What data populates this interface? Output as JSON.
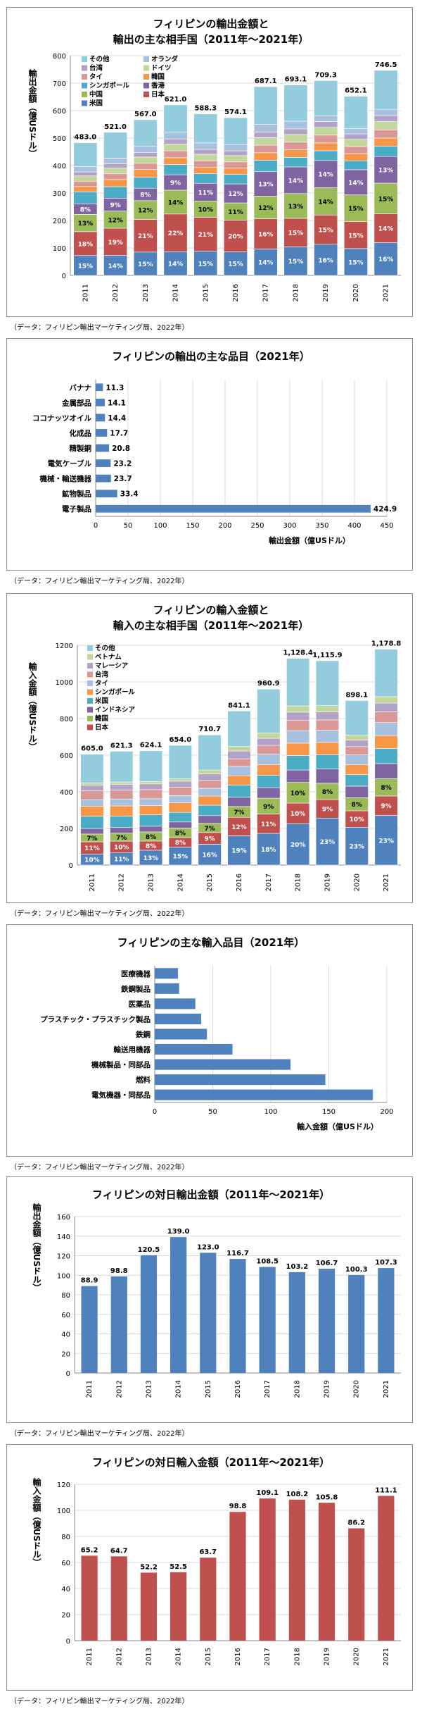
{
  "colors": {
    "japan": "#c0504d",
    "us": "#4f81bd",
    "china": "#9bbb59",
    "korea": "#9bbb59",
    "hongkong": "#8064a2",
    "indonesia": "#8064a2",
    "singapore": "#4bacc6",
    "thailand": "#f79646",
    "taiwan": "#d99795",
    "malaysia": "#d99795",
    "germany": "#c3d69b",
    "vietnam": "#b3a2c7",
    "netherlands": "#a7c0de",
    "other": "#93cddd",
    "bar_blue": "#4f81bd",
    "bar_red": "#c0504d"
  },
  "chart_data": [
    {
      "id": "export-partners",
      "type": "stacked-bar",
      "title_line1": "フィリピンの輸出金額と",
      "title_line2": "輸出の主な相手国（2011年～2021年）",
      "ylabel": "輸出金額（億USドル）",
      "ylim": [
        0,
        800
      ],
      "yticks": [
        0,
        100,
        200,
        300,
        400,
        500,
        600,
        700,
        800
      ],
      "grid": true,
      "legend_position": "top-left",
      "categories": [
        "2011",
        "2012",
        "2013",
        "2014",
        "2015",
        "2016",
        "2017",
        "2018",
        "2019",
        "2020",
        "2021"
      ],
      "totals": [
        483.0,
        521.0,
        567.0,
        621.0,
        588.3,
        574.1,
        687.1,
        693.1,
        709.3,
        652.1,
        746.5
      ],
      "total_labels": [
        "483.0",
        "521.0",
        "567.0",
        "621.0",
        "588.3",
        "574.1",
        "687.1",
        "693.1",
        "709.3",
        "652.1",
        "746.5"
      ],
      "legend_order": [
        "その他",
        "オランダ",
        "台湾",
        "ドイツ",
        "タイ",
        "韓国",
        "シンガポール",
        "香港",
        "中国",
        "日本",
        "米国"
      ],
      "series": [
        {
          "name": "米国",
          "color_key": "us",
          "share": [
            15,
            14,
            15,
            14,
            15,
            15,
            14,
            15,
            16,
            15,
            16
          ],
          "labels": [
            "15%",
            "14%",
            "15%",
            "14%",
            "15%",
            "15%",
            "14%",
            "15%",
            "16%",
            "15%",
            "16%"
          ]
        },
        {
          "name": "日本",
          "color_key": "japan",
          "share": [
            18,
            19,
            21,
            22,
            21,
            20,
            16,
            15,
            15,
            15,
            14
          ],
          "labels": [
            "18%",
            "19%",
            "21%",
            "22%",
            "21%",
            "20%",
            "16%",
            "15%",
            "15%",
            "15%",
            "14%"
          ]
        },
        {
          "name": "中国",
          "color_key": "china",
          "share": [
            13,
            12,
            12,
            14,
            10,
            11,
            12,
            13,
            14,
            15,
            15
          ],
          "labels": [
            "13%",
            "12%",
            "12%",
            "14%",
            "10%",
            "11%",
            "12%",
            "13%",
            "14%",
            "15%",
            "15%"
          ]
        },
        {
          "name": "香港",
          "color_key": "hongkong",
          "share": [
            8,
            9,
            8,
            9,
            11,
            12,
            13,
            14,
            14,
            14,
            13
          ],
          "labels": [
            "8%",
            "9%",
            "8%",
            "9%",
            "11%",
            "12%",
            "13%",
            "14%",
            "14%",
            "14%",
            "13%"
          ]
        },
        {
          "name": "シンガポール",
          "color_key": "singapore",
          "share": [
            9,
            8,
            7,
            6,
            6,
            6,
            6,
            5,
            5,
            5,
            5
          ],
          "labels": [
            "",
            "",
            "",
            "",
            "",
            "",
            "",
            "",
            "",
            "",
            ""
          ]
        },
        {
          "name": "韓国",
          "color_key": "thailand",
          "share": [
            4,
            5,
            5,
            4,
            4,
            4,
            4,
            4,
            4,
            4,
            4
          ],
          "labels": [
            "",
            "",
            "",
            "",
            "",
            "",
            "",
            "",
            "",
            "",
            ""
          ]
        },
        {
          "name": "タイ",
          "color_key": "taiwan",
          "share": [
            4,
            4,
            4,
            4,
            4,
            4,
            4,
            4,
            4,
            4,
            4
          ],
          "labels": [
            "",
            "",
            "",
            "",
            "",
            "",
            "",
            "",
            "",
            "",
            ""
          ]
        },
        {
          "name": "ドイツ",
          "color_key": "germany",
          "share": [
            4,
            4,
            4,
            4,
            4,
            4,
            4,
            4,
            4,
            4,
            4
          ],
          "labels": [
            "",
            "",
            "",
            "",
            "",
            "",
            "",
            "",
            "",
            "",
            ""
          ]
        },
        {
          "name": "台湾",
          "color_key": "vietnam",
          "share": [
            3,
            3,
            3,
            3,
            3,
            3,
            3,
            3,
            3,
            3,
            3
          ],
          "labels": [
            "",
            "",
            "",
            "",
            "",
            "",
            "",
            "",
            "",
            "",
            ""
          ]
        },
        {
          "name": "オランダ",
          "color_key": "netherlands",
          "share": [
            4,
            4,
            4,
            4,
            4,
            4,
            4,
            4,
            3,
            3,
            3
          ],
          "labels": [
            "",
            "",
            "",
            "",
            "",
            "",
            "",
            "",
            "",
            "",
            ""
          ]
        },
        {
          "name": "その他",
          "color_key": "other",
          "share": [
            18,
            18,
            17,
            16,
            18,
            17,
            20,
            19,
            18,
            18,
            19
          ],
          "labels": [
            "",
            "",
            "",
            "",
            "",
            "",
            "",
            "",
            "",
            "",
            ""
          ]
        }
      ],
      "source": "（データ：フィリピン輸出マーケティング局、2022年）"
    },
    {
      "id": "export-items",
      "type": "hbar",
      "title": "フィリピンの輸出の主な品目（2021年）",
      "xlabel": "輸出金額（億USドル）",
      "xlim": [
        0,
        450
      ],
      "xticks": [
        0,
        50,
        100,
        150,
        200,
        250,
        300,
        350,
        400,
        450
      ],
      "grid": true,
      "categories": [
        "バナナ",
        "金属部品",
        "ココナッツオイル",
        "化成品",
        "精製銅",
        "電気ケーブル",
        "機械・輸送機器",
        "鉱物製品",
        "電子製品"
      ],
      "values": [
        11.3,
        14.1,
        14.4,
        17.7,
        20.8,
        23.2,
        23.7,
        33.4,
        424.9
      ],
      "value_labels": [
        "11.3",
        "14.1",
        "14.4",
        "17.7",
        "20.8",
        "23.2",
        "23.7",
        "33.4",
        "424.9"
      ],
      "source": "（データ：フィリピン輸出マーケティング局、2022年）"
    },
    {
      "id": "import-partners",
      "type": "stacked-bar",
      "title_line1": "フィリピンの輸入金額と",
      "title_line2": "輸入の主な相手国（2011年～2021年）",
      "ylabel": "輸入金額（億USドル）",
      "ylim": [
        0,
        1200
      ],
      "yticks": [
        0,
        200,
        400,
        600,
        800,
        1000,
        1200
      ],
      "grid": true,
      "legend_position": "top-left",
      "categories": [
        "2011",
        "2012",
        "2013",
        "2014",
        "2015",
        "2016",
        "2017",
        "2018",
        "2019",
        "2020",
        "2021"
      ],
      "totals": [
        605.0,
        621.3,
        624.1,
        654.0,
        710.7,
        841.1,
        960.9,
        1128.4,
        1115.9,
        898.1,
        1178.8
      ],
      "total_labels": [
        "605.0",
        "621.3",
        "624.1",
        "654.0",
        "710.7",
        "841.1",
        "960.9",
        "1,128.4",
        "1,115.9",
        "898.1",
        "1,178.8"
      ],
      "legend_order": [
        "その他",
        "ベトナム",
        "マレーシア",
        "台湾",
        "タイ",
        "シンガポール",
        "米国",
        "インドネシア",
        "韓国",
        "日本"
      ],
      "series": [
        {
          "name": "中国",
          "color_key": "us",
          "share": [
            10,
            11,
            13,
            15,
            16,
            19,
            18,
            20,
            23,
            23,
            23
          ],
          "labels": [
            "10%",
            "11%",
            "13%",
            "15%",
            "16%",
            "19%",
            "18%",
            "20%",
            "23%",
            "23%",
            "23%"
          ]
        },
        {
          "name": "日本",
          "color_key": "japan",
          "share": [
            11,
            10,
            8,
            8,
            9,
            12,
            11,
            10,
            9,
            10,
            9
          ],
          "labels": [
            "11%",
            "10%",
            "8%",
            "8%",
            "9%",
            "12%",
            "11%",
            "10%",
            "9%",
            "10%",
            "9%"
          ]
        },
        {
          "name": "韓国",
          "color_key": "korea",
          "share": [
            7,
            7,
            8,
            8,
            7,
            7,
            9,
            10,
            8,
            8,
            8
          ],
          "labels": [
            "7%",
            "7%",
            "8%",
            "8%",
            "7%",
            "7%",
            "9%",
            "10%",
            "8%",
            "8%",
            "8%"
          ]
        },
        {
          "name": "インドネシア",
          "color_key": "indonesia",
          "share": [
            5,
            5,
            5,
            5,
            6,
            6,
            6,
            6,
            7,
            7,
            7
          ],
          "labels": [
            "",
            "",
            "",
            "",
            "",
            "",
            "",
            "",
            "",
            "",
            ""
          ]
        },
        {
          "name": "米国",
          "color_key": "singapore",
          "share": [
            11,
            10,
            10,
            8,
            8,
            8,
            7,
            7,
            7,
            7,
            7
          ],
          "labels": [
            "",
            "",
            "",
            "",
            "",
            "",
            "",
            "",
            "",
            "",
            ""
          ]
        },
        {
          "name": "シンガポール",
          "color_key": "thailand",
          "share": [
            9,
            9,
            8,
            8,
            7,
            6,
            6,
            6,
            6,
            6,
            6
          ],
          "labels": [
            "",
            "",
            "",
            "",
            "",
            "",
            "",
            "",
            "",
            "",
            ""
          ]
        },
        {
          "name": "タイ",
          "color_key": "netherlands",
          "share": [
            6,
            6,
            6,
            6,
            6,
            6,
            6,
            6,
            6,
            6,
            6
          ],
          "labels": [
            "",
            "",
            "",
            "",
            "",
            "",
            "",
            "",
            "",
            "",
            ""
          ]
        },
        {
          "name": "台湾",
          "color_key": "malaysia",
          "share": [
            8,
            8,
            8,
            7,
            6,
            5,
            5,
            5,
            5,
            5,
            5
          ],
          "labels": [
            "",
            "",
            "",
            "",
            "",
            "",
            "",
            "",
            "",
            "",
            ""
          ]
        },
        {
          "name": "マレーシア",
          "color_key": "vietnam",
          "share": [
            5,
            5,
            5,
            5,
            5,
            5,
            4,
            4,
            4,
            4,
            4
          ],
          "labels": [
            "",
            "",
            "",
            "",
            "",
            "",
            "",
            "",
            "",
            "",
            ""
          ]
        },
        {
          "name": "ベトナム",
          "color_key": "germany",
          "share": [
            2,
            2,
            2,
            2,
            3,
            3,
            3,
            3,
            3,
            3,
            3
          ],
          "labels": [
            "",
            "",
            "",
            "",
            "",
            "",
            "",
            "",
            "",
            "",
            ""
          ]
        },
        {
          "name": "その他",
          "color_key": "other",
          "share": [
            26,
            27,
            27,
            28,
            27,
            23,
            25,
            23,
            22,
            21,
            22
          ],
          "labels": [
            "",
            "",
            "",
            "",
            "",
            "",
            "",
            "",
            "",
            "",
            ""
          ]
        }
      ],
      "source": "（データ：フィリピン輸出マーケティング局、2022年）"
    },
    {
      "id": "import-items",
      "type": "hbar",
      "title": "フィリピンの主な輸入品目（2021年）",
      "xlabel": "輸入金額（億USドル）",
      "xlim": [
        0,
        200
      ],
      "xticks": [
        0,
        50,
        100,
        150,
        200
      ],
      "grid": true,
      "categories": [
        "医療機器",
        "鉄鋼製品",
        "医薬品",
        "プラスチック・プラスチック製品",
        "鉄鋼",
        "輸送用機器",
        "機械製品・同部品",
        "燃料",
        "電気機器・同部品"
      ],
      "values": [
        20,
        21,
        35,
        40,
        45,
        67,
        117,
        147,
        188
      ],
      "value_labels": [
        "",
        "",
        "",
        "",
        "",
        "",
        "",
        "",
        ""
      ],
      "source": "（データ：フィリピン輸出マーケティング局、2022年）"
    },
    {
      "id": "export-to-japan",
      "type": "bar",
      "title": "フィリピンの対日輸出金額（2011年～2021年）",
      "ylabel": "輸出金額（億USドル）",
      "ylim": [
        0,
        160
      ],
      "yticks": [
        0,
        20,
        40,
        60,
        80,
        100,
        120,
        140,
        160
      ],
      "grid": true,
      "color_key": "bar_blue",
      "categories": [
        "2011",
        "2012",
        "2013",
        "2014",
        "2015",
        "2016",
        "2017",
        "2018",
        "2019",
        "2020",
        "2021"
      ],
      "values": [
        88.9,
        98.8,
        120.5,
        139.0,
        123.0,
        116.7,
        108.5,
        103.2,
        106.7,
        100.3,
        107.3
      ],
      "value_labels": [
        "88.9",
        "98.8",
        "120.5",
        "139.0",
        "123.0",
        "116.7",
        "108.5",
        "103.2",
        "106.7",
        "100.3",
        "107.3"
      ],
      "source": "（データ：フィリピン輸出マーケティング局、2022年）"
    },
    {
      "id": "import-from-japan",
      "type": "bar",
      "title": "フィリピンの対日輸入金額（2011年～2021年）",
      "ylabel": "輸入金額（億USドル）",
      "ylim": [
        0,
        120
      ],
      "yticks": [
        0,
        20,
        40,
        60,
        80,
        100,
        120
      ],
      "grid": true,
      "color_key": "bar_red",
      "categories": [
        "2011",
        "2012",
        "2013",
        "2014",
        "2015",
        "2016",
        "2017",
        "2018",
        "2019",
        "2020",
        "2021"
      ],
      "values": [
        65.2,
        64.7,
        52.2,
        52.5,
        63.7,
        98.8,
        109.1,
        108.2,
        105.8,
        86.2,
        111.1
      ],
      "value_labels": [
        "65.2",
        "64.7",
        "52.2",
        "52.5",
        "63.7",
        "98.8",
        "109.1",
        "108.2",
        "105.8",
        "86.2",
        "111.1"
      ],
      "source": "（データ：フィリピン輸出マーケティング局、2022年）"
    }
  ]
}
